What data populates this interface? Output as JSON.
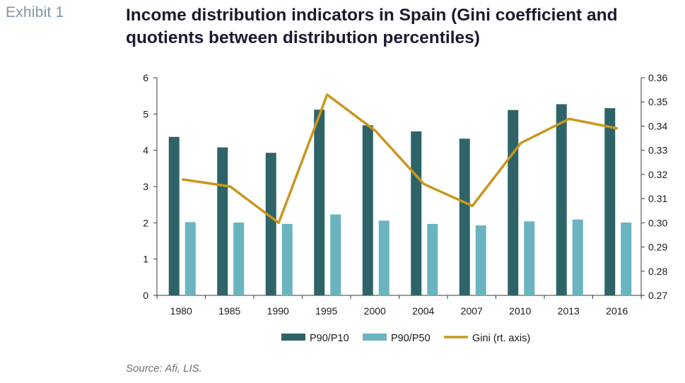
{
  "exhibit_label": "Exhibit 1",
  "title": "Income distribution indicators in Spain (Gini coefficient and quotients between distribution percentiles)",
  "source": "Source: Afi, LIS.",
  "colors": {
    "p90p10": "#2e6468",
    "p90p50": "#6ab4bf",
    "gini": "#c9961e",
    "axis": "#3a3a3a"
  },
  "chart_data": {
    "type": "bar",
    "categories": [
      "1980",
      "1985",
      "1990",
      "1995",
      "2000",
      "2004",
      "2007",
      "2010",
      "2013",
      "2016"
    ],
    "series": [
      {
        "name": "P90/P10",
        "type": "bar",
        "axis": "left",
        "values": [
          4.37,
          4.08,
          3.93,
          5.12,
          4.69,
          4.52,
          4.32,
          5.11,
          5.27,
          5.16
        ]
      },
      {
        "name": "P90/P50",
        "type": "bar",
        "axis": "left",
        "values": [
          2.02,
          2.01,
          1.97,
          2.23,
          2.06,
          1.97,
          1.93,
          2.04,
          2.09,
          2.01
        ]
      },
      {
        "name": "Gini (rt. axis)",
        "type": "line",
        "axis": "right",
        "values": [
          0.318,
          0.315,
          0.3,
          0.353,
          0.338,
          0.316,
          0.307,
          0.333,
          0.343,
          0.339
        ]
      }
    ],
    "left_axis": {
      "min": 0,
      "max": 6,
      "ticks": [
        "0",
        "1",
        "2",
        "3",
        "4",
        "5",
        "6"
      ]
    },
    "right_axis": {
      "min": 0.27,
      "max": 0.36,
      "ticks": [
        "0.27",
        "0.28",
        "0.29",
        "0.30",
        "0.31",
        "0.32",
        "0.33",
        "0.34",
        "0.35",
        "0.36"
      ]
    },
    "grid": false,
    "legend_position": "bottom"
  }
}
